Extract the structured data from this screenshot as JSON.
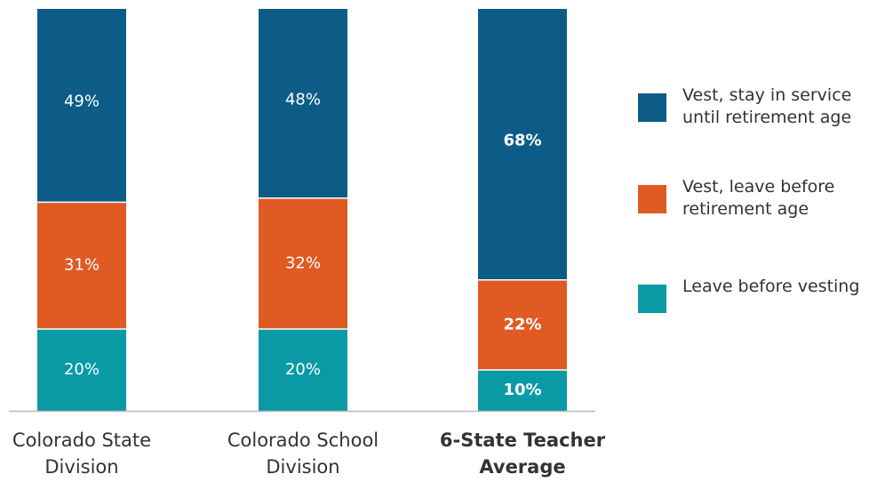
{
  "chart_data": {
    "type": "stacked_bar",
    "categories": [
      "Colorado State Division",
      "Colorado School Division",
      "6-State Teacher Average"
    ],
    "bold_category": 2,
    "ylim": [
      0,
      100
    ],
    "series": [
      {
        "name": "Vest, stay in service until retirement age",
        "color": "#0d5c88",
        "values": [
          49,
          48,
          68
        ],
        "value_labels": [
          "49%",
          "48%",
          "68%"
        ]
      },
      {
        "name": "Vest, leave before retirement age",
        "color": "#e05a24",
        "values": [
          31,
          32,
          22
        ],
        "value_labels": [
          "31%",
          "32%",
          "22%"
        ]
      },
      {
        "name": "Leave before vesting",
        "color": "#0a9aa6",
        "values": [
          20,
          20,
          10
        ],
        "value_labels": [
          "20%",
          "20%",
          "10%"
        ]
      }
    ]
  }
}
